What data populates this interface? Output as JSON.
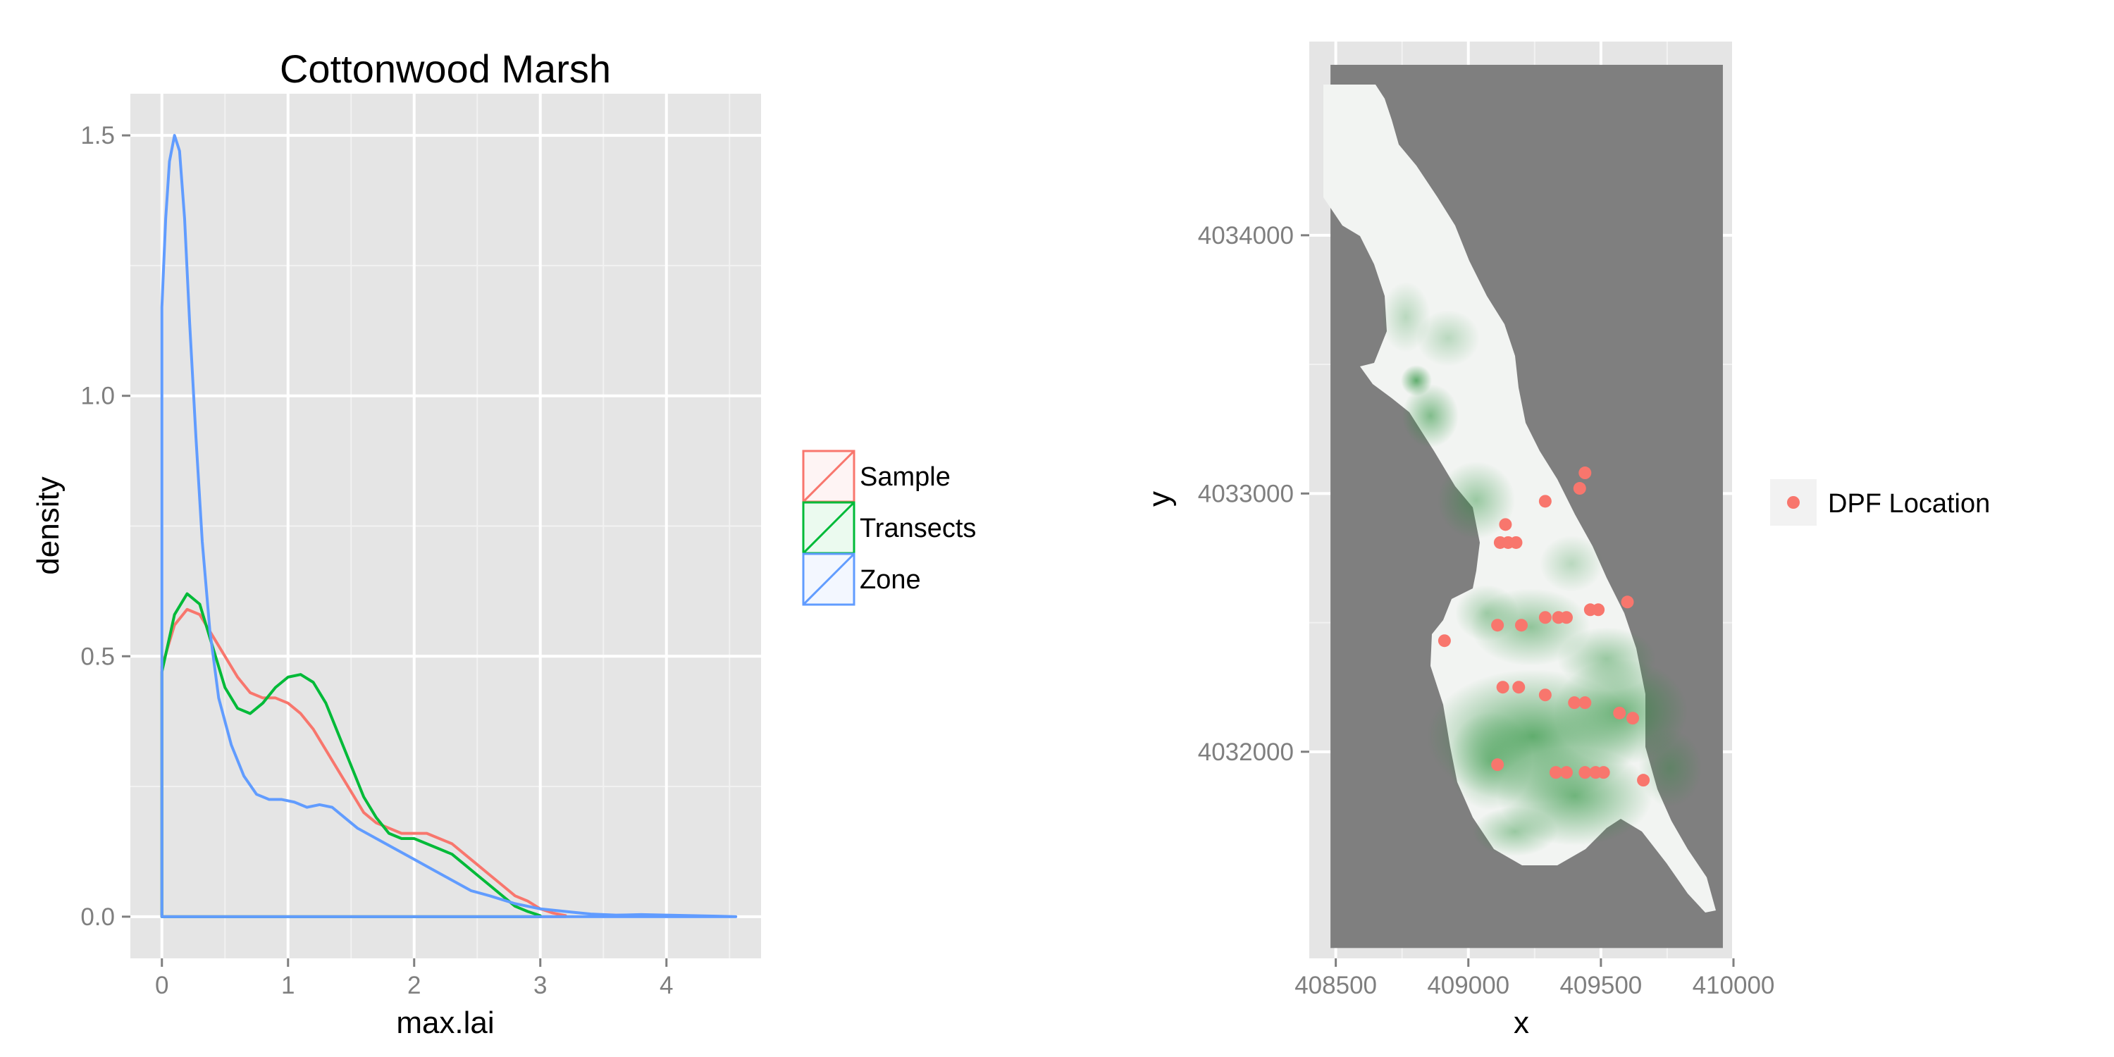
{
  "chart_data": [
    {
      "type": "density",
      "title": "Cottonwood Marsh",
      "xlabel": "max.lai",
      "ylabel": "density",
      "xlim": [
        -0.25,
        4.75
      ],
      "ylim": [
        -0.08,
        1.58
      ],
      "x_ticks": [
        0,
        1,
        2,
        3,
        4
      ],
      "x_tick_labels": [
        "0",
        "1",
        "2",
        "3",
        "4"
      ],
      "y_ticks": [
        0.0,
        0.5,
        1.0,
        1.5
      ],
      "y_tick_labels": [
        "0.0",
        "0.5",
        "1.0",
        "1.5"
      ],
      "grid": true,
      "legend_position": "right",
      "series": [
        {
          "name": "Sample",
          "color": "#F8766D",
          "x": [
            0,
            0.1,
            0.2,
            0.3,
            0.4,
            0.5,
            0.6,
            0.7,
            0.8,
            0.9,
            1.0,
            1.1,
            1.2,
            1.3,
            1.4,
            1.5,
            1.6,
            1.7,
            1.8,
            1.9,
            2.0,
            2.1,
            2.2,
            2.3,
            2.4,
            2.5,
            2.6,
            2.7,
            2.8,
            2.9,
            3.0,
            3.1,
            3.2
          ],
          "y": [
            0.48,
            0.56,
            0.59,
            0.58,
            0.54,
            0.5,
            0.46,
            0.43,
            0.42,
            0.42,
            0.41,
            0.39,
            0.36,
            0.32,
            0.28,
            0.24,
            0.2,
            0.18,
            0.17,
            0.16,
            0.16,
            0.16,
            0.15,
            0.14,
            0.12,
            0.1,
            0.08,
            0.06,
            0.04,
            0.03,
            0.015,
            0.007,
            0.002
          ]
        },
        {
          "name": "Transects",
          "color": "#00BA38",
          "x": [
            0,
            0.1,
            0.2,
            0.3,
            0.4,
            0.5,
            0.6,
            0.7,
            0.8,
            0.9,
            1.0,
            1.1,
            1.2,
            1.3,
            1.4,
            1.5,
            1.6,
            1.7,
            1.8,
            1.9,
            2.0,
            2.1,
            2.2,
            2.3,
            2.4,
            2.5,
            2.6,
            2.7,
            2.8,
            2.9,
            3.0
          ],
          "y": [
            0.47,
            0.58,
            0.62,
            0.6,
            0.52,
            0.44,
            0.4,
            0.39,
            0.41,
            0.44,
            0.46,
            0.465,
            0.45,
            0.41,
            0.35,
            0.29,
            0.23,
            0.19,
            0.16,
            0.15,
            0.15,
            0.14,
            0.13,
            0.12,
            0.1,
            0.08,
            0.06,
            0.04,
            0.02,
            0.01,
            0.002
          ]
        },
        {
          "name": "Zone",
          "color": "#619CFF",
          "x": [
            0,
            0.03,
            0.06,
            0.1,
            0.14,
            0.18,
            0.22,
            0.27,
            0.32,
            0.38,
            0.45,
            0.55,
            0.65,
            0.75,
            0.85,
            0.95,
            1.05,
            1.15,
            1.25,
            1.35,
            1.45,
            1.55,
            1.7,
            1.85,
            2.0,
            2.15,
            2.3,
            2.45,
            2.6,
            2.8,
            3.0,
            3.2,
            3.4,
            3.6,
            3.8,
            4.0,
            4.2,
            4.4,
            4.55
          ],
          "y": [
            1.17,
            1.34,
            1.45,
            1.5,
            1.47,
            1.34,
            1.14,
            0.92,
            0.72,
            0.55,
            0.42,
            0.33,
            0.27,
            0.235,
            0.225,
            0.225,
            0.22,
            0.21,
            0.215,
            0.21,
            0.19,
            0.17,
            0.15,
            0.13,
            0.11,
            0.09,
            0.07,
            0.05,
            0.04,
            0.025,
            0.015,
            0.01,
            0.005,
            0.003,
            0.004,
            0.003,
            0.002,
            0.001,
            0.0
          ]
        }
      ]
    },
    {
      "type": "raster_map",
      "xlabel": "x",
      "ylabel": "y",
      "xlim": [
        408400,
        410000
      ],
      "ylim": [
        4031200,
        4034750
      ],
      "x_ticks": [
        408500,
        409000,
        409500,
        410000
      ],
      "x_tick_labels": [
        "408500",
        "409000",
        "409500",
        "410000"
      ],
      "y_ticks": [
        4032000,
        4033000,
        4034000
      ],
      "y_tick_labels": [
        "4032000",
        "4033000",
        "4034000"
      ],
      "grid": true,
      "legend_position": "right",
      "background_color": "#7f7f7f",
      "marsh_fill_color": "#f2f4f2",
      "vegetation_color": "#1a8a2e",
      "series": [
        {
          "name": "DPF Location",
          "color": "#F8766D",
          "points": [
            [
              409440,
              4033080
            ],
            [
              409420,
              4033020
            ],
            [
              409290,
              4032970
            ],
            [
              409140,
              4032880
            ],
            [
              409120,
              4032810
            ],
            [
              409150,
              4032810
            ],
            [
              409180,
              4032810
            ],
            [
              409600,
              4032580
            ],
            [
              409460,
              4032550
            ],
            [
              409490,
              4032550
            ],
            [
              409290,
              4032520
            ],
            [
              409340,
              4032520
            ],
            [
              409370,
              4032520
            ],
            [
              409110,
              4032490
            ],
            [
              409200,
              4032490
            ],
            [
              408910,
              4032430
            ],
            [
              409130,
              4032250
            ],
            [
              409190,
              4032250
            ],
            [
              409290,
              4032220
            ],
            [
              409400,
              4032190
            ],
            [
              409440,
              4032190
            ],
            [
              409570,
              4032150
            ],
            [
              409620,
              4032130
            ],
            [
              409110,
              4031950
            ],
            [
              409330,
              4031920
            ],
            [
              409370,
              4031920
            ],
            [
              409440,
              4031920
            ],
            [
              409480,
              4031920
            ],
            [
              409510,
              4031920
            ],
            [
              409660,
              4031890
            ]
          ]
        }
      ]
    }
  ]
}
